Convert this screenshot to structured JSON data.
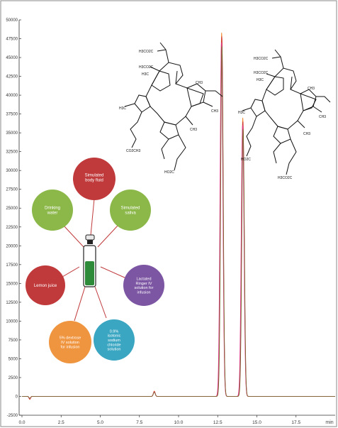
{
  "chart_data": {
    "type": "line",
    "title": "",
    "xlabel": "",
    "ylabel": "",
    "x_unit": "min",
    "xlim": [
      0,
      20
    ],
    "ylim": [
      -2500,
      50000
    ],
    "x_ticks": [
      "0.0",
      "2.5",
      "5.0",
      "7.5",
      "10.0",
      "12.5",
      "15.0",
      "17.5"
    ],
    "x_tick_values": [
      0,
      2.5,
      5,
      7.5,
      10,
      12.5,
      15,
      17.5
    ],
    "y_ticks": [
      "-2500",
      "0",
      "2500",
      "5000",
      "7500",
      "10000",
      "12500",
      "15000",
      "17500",
      "20000",
      "22500",
      "25000",
      "27500",
      "30000",
      "32500",
      "35000",
      "37500",
      "40000",
      "42500",
      "45000",
      "47500",
      "50000"
    ],
    "y_tick_values": [
      -2500,
      0,
      2500,
      5000,
      7500,
      10000,
      12500,
      15000,
      17500,
      20000,
      22500,
      25000,
      27500,
      30000,
      32500,
      35000,
      37500,
      40000,
      42500,
      45000,
      47500,
      50000
    ],
    "grid": false,
    "series": [
      {
        "color": "#f08a30",
        "peaks": [
          {
            "rt": 0.5,
            "h": -400,
            "w": 0.05
          },
          {
            "rt": 8.45,
            "h": 700,
            "w": 0.06
          },
          {
            "rt": 12.75,
            "h": 48300,
            "w": 0.085
          },
          {
            "rt": 14.1,
            "h": 37000,
            "w": 0.085
          }
        ]
      },
      {
        "color": "#cc2b2b",
        "peaks": [
          {
            "rt": 0.5,
            "h": -350,
            "w": 0.05
          },
          {
            "rt": 8.45,
            "h": 650,
            "w": 0.06
          },
          {
            "rt": 12.76,
            "h": 47800,
            "w": 0.083
          },
          {
            "rt": 14.11,
            "h": 36500,
            "w": 0.083
          }
        ]
      },
      {
        "color": "#e0348c",
        "peaks": [
          {
            "rt": 0.5,
            "h": -300,
            "w": 0.05
          },
          {
            "rt": 8.45,
            "h": 600,
            "w": 0.06
          },
          {
            "rt": 12.74,
            "h": 47000,
            "w": 0.087
          },
          {
            "rt": 14.09,
            "h": 36000,
            "w": 0.087
          }
        ]
      },
      {
        "color": "#7a6a30",
        "peaks": [
          {
            "rt": 0.5,
            "h": -250,
            "w": 0.05
          },
          {
            "rt": 8.45,
            "h": 550,
            "w": 0.06
          },
          {
            "rt": 12.77,
            "h": 46500,
            "w": 0.082
          },
          {
            "rt": 14.12,
            "h": 35500,
            "w": 0.082
          }
        ]
      }
    ]
  },
  "diagram": {
    "bubbles": [
      {
        "id": "simulated-body-fluid",
        "label": "Simulated body fluid",
        "color": "#c0393b"
      },
      {
        "id": "drinking-water",
        "label": "Drinking water",
        "color": "#8cb84a"
      },
      {
        "id": "simulated-saliva",
        "label": "Simulated saliva",
        "color": "#8cb84a"
      },
      {
        "id": "lemon-juice",
        "label": "Lemon juice",
        "color": "#c0393b"
      },
      {
        "id": "lactated-ringer",
        "label": "Lactated Ringer IV solution for infusion",
        "color": "#7c55a3"
      },
      {
        "id": "5-dextrose",
        "label": "5% dextrose IV solution for infusion",
        "color": "#f0953f"
      },
      {
        "id": "sodium-chloride",
        "label": "0.9% isotonic sodium chloride solution",
        "color": "#3aa6c2"
      }
    ]
  },
  "structures": {
    "left": [
      "H3CO2C",
      "H3CO2C",
      "H3C",
      "CH3",
      "H3C",
      "CH3",
      "CH3",
      "CO2CH3",
      "HO2C"
    ],
    "right": [
      "H3CO2C",
      "H3CO2C",
      "H3C",
      "CH3",
      "H3C",
      "CH3",
      "CH3",
      "HO2C",
      "H3CO2C"
    ]
  }
}
